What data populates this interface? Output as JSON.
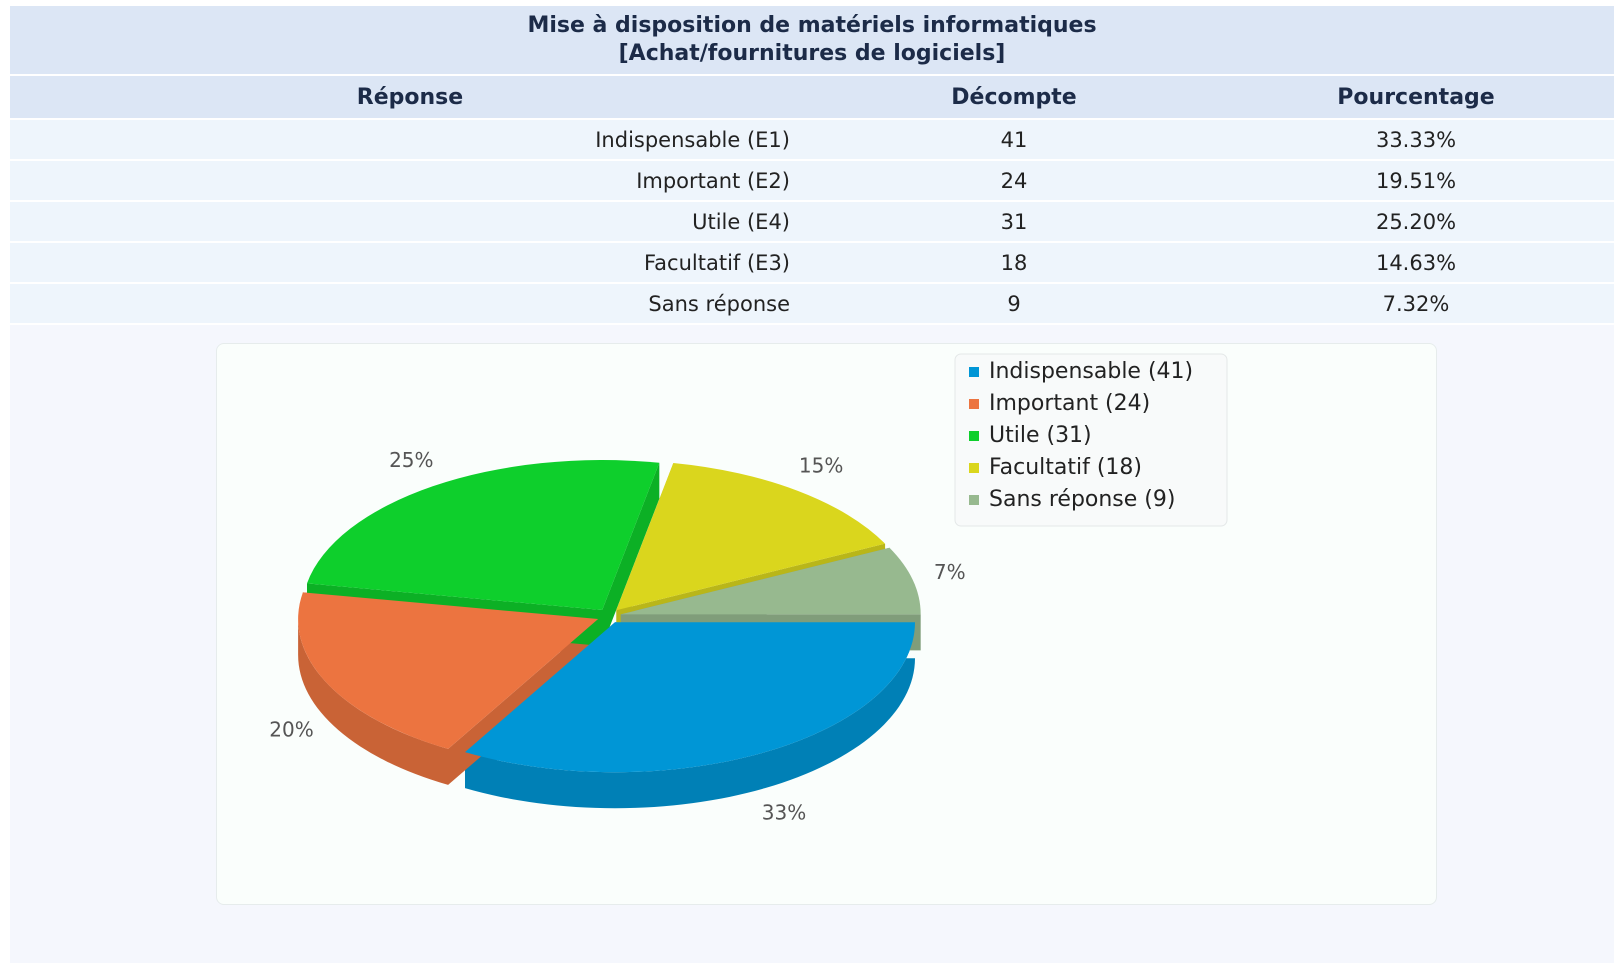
{
  "header": {
    "title": [
      "Mise à disposition de matériels informatiques",
      "[Achat/fournitures de logiciels]"
    ]
  },
  "table": {
    "columns": [
      "Réponse",
      "Décompte",
      "Pourcentage"
    ],
    "rows": [
      [
        "Indispensable (E1)",
        "41",
        "33.33%"
      ],
      [
        "Important (E2)",
        "24",
        "19.51%"
      ],
      [
        "Utile (E4)",
        "31",
        "25.20%"
      ],
      [
        "Facultatif (E3)",
        "18",
        "14.63%"
      ],
      [
        "Sans réponse",
        "9",
        "7.32%"
      ]
    ]
  },
  "chart_data": {
    "type": "pie",
    "categories": [
      "Indispensable (41)",
      "Important (24)",
      "Utile (31)",
      "Facultatif (18)",
      "Sans réponse (9)"
    ],
    "values": [
      33.33,
      19.51,
      25.2,
      14.63,
      7.32
    ],
    "value_labels": [
      "33%",
      "20%",
      "25%",
      "15%",
      "7%"
    ],
    "colors": [
      "#0096d6",
      "#ec7440",
      "#0ecf2c",
      "#dad61d",
      "#97b98f"
    ],
    "legend": "top-right"
  }
}
